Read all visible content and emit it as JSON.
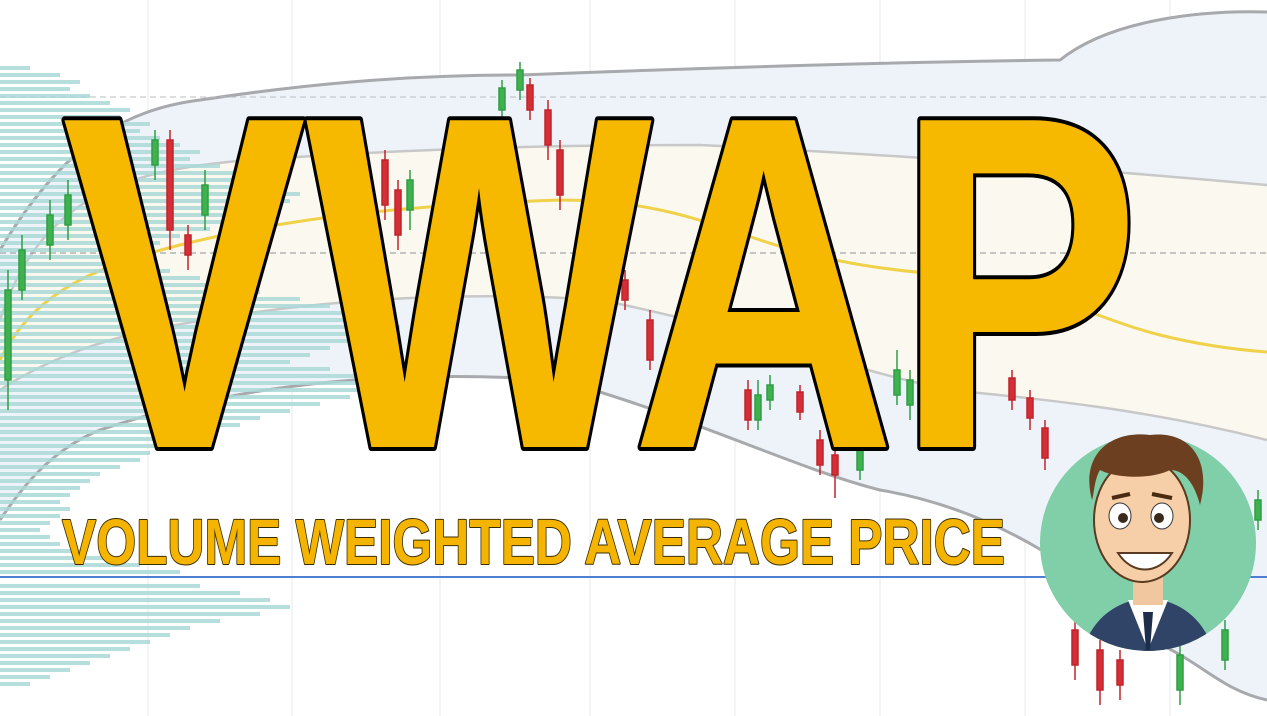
{
  "title": "VWAP",
  "subtitle": "VOLUME WEIGHTED AVERAGE PRICE"
}
